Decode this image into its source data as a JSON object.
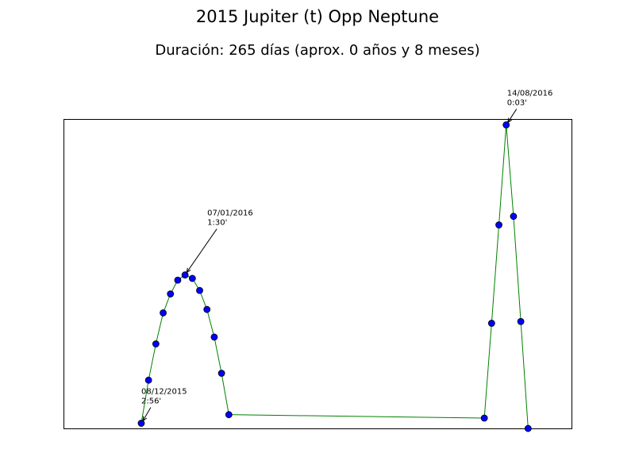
{
  "chart_data": {
    "type": "line",
    "title": "2015 Jupiter (t) Opp Neptune",
    "subtitle": "Duración: 265 días (aprox. 0 años y 8 meses)",
    "x": [
      "2015-12-08",
      "2015-12-13",
      "2015-12-18",
      "2015-12-23",
      "2015-12-28",
      "2016-01-02",
      "2016-01-07",
      "2016-01-12",
      "2016-01-17",
      "2016-01-22",
      "2016-01-27",
      "2016-02-01",
      "2016-02-06",
      "2016-07-30",
      "2016-08-04",
      "2016-08-09",
      "2016-08-14",
      "2016-08-19",
      "2016-08-24",
      "2016-08-29"
    ],
    "series": [
      {
        "line_color": "#008000",
        "color": "#0000ff",
        "values": [
          176,
          151,
          130,
          112,
          101,
          93,
          90,
          92,
          99,
          110,
          126,
          147,
          171,
          173,
          118,
          61,
          3,
          56,
          117,
          179
        ]
      }
    ],
    "xlim": [
      "2015-10-16",
      "2016-09-28"
    ],
    "ylim": [
      179.2,
      -0.2
    ],
    "annotations": [
      {
        "lines": [
          "08/12/2015",
          "2:56'"
        ]
      },
      {
        "lines": [
          "07/01/2016",
          "1:30'"
        ]
      },
      {
        "lines": [
          "14/08/2016",
          "0:03'"
        ]
      }
    ]
  }
}
